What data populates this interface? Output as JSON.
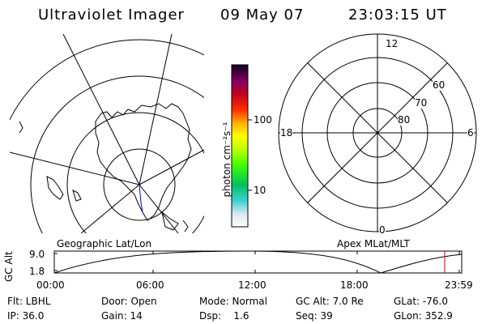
{
  "header": {
    "title": "Ultraviolet Imager",
    "date": "09 May 07",
    "time": "23:03:15 UT"
  },
  "map": {
    "left_caption": "Geographic Lat/Lon",
    "right_caption": "Apex MLat/MLT"
  },
  "colorbar": {
    "unit_label": "photon cm⁻²s⁻¹",
    "ticks": [
      "100",
      "10"
    ]
  },
  "polar": {
    "mlt_labels": {
      "top": "12",
      "left": "18",
      "right": "6",
      "bottom": "0"
    },
    "lat_labels": [
      "60",
      "70",
      "80"
    ]
  },
  "altitude_plot": {
    "ylabel": "GC Alt",
    "yticks": [
      "9.0",
      "1.8"
    ],
    "xticks": [
      "00:00",
      "06:00",
      "12:00",
      "18:00",
      "23:59"
    ]
  },
  "info": {
    "row1": [
      "Flt: LBHL",
      "Door: Open",
      "Mode: Normal",
      "GC Alt: 7.0 Re",
      "GLat: -76.0"
    ],
    "row2": [
      "IP: 36.0",
      "Gain: 14",
      "Dsp:    1.6",
      "Seq: 39",
      "GLon: 352.9"
    ]
  }
}
